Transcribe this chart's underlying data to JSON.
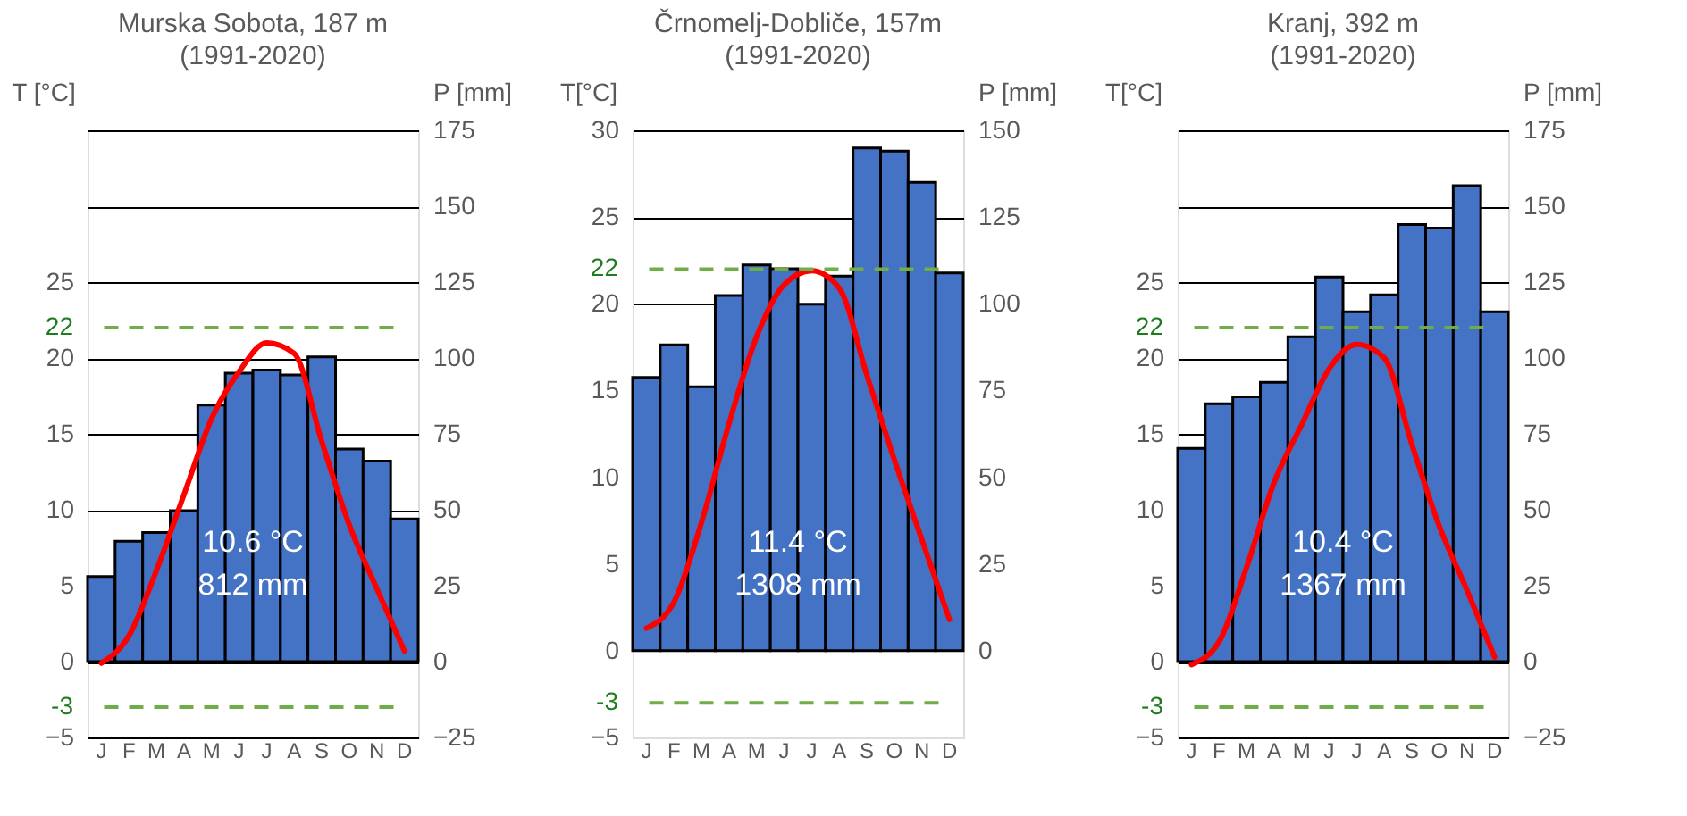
{
  "chart_data": [
    {
      "type": "bar",
      "title": "Murska Sobota, 187 m",
      "subtitle": "(1991-2020)",
      "ylabel": "T [°C]",
      "y2label": "P [mm]",
      "categories": [
        "J",
        "F",
        "M",
        "A",
        "M",
        "J",
        "J",
        "A",
        "S",
        "O",
        "N",
        "D"
      ],
      "series": [
        {
          "axis": "y2",
          "color": "#4472c4",
          "values": [
            28,
            39.6,
            42.5,
            49.7,
            84.5,
            95,
            96,
            94.4,
            100.4,
            70,
            66,
            47
          ]
        },
        {
          "type": "line",
          "color": "#ff0000",
          "values": [
            -0.1,
            1.7,
            6,
            11,
            16,
            19.1,
            21,
            20.3,
            14.5,
            9,
            4.8,
            0.7
          ]
        }
      ],
      "ylim": [
        -5,
        35
      ],
      "yticks": [
        -5,
        0,
        5,
        10,
        15,
        20,
        25
      ],
      "y2lim": [
        -25,
        175
      ],
      "y2ticks": [
        -25,
        0,
        25,
        50,
        75,
        100,
        125,
        150,
        175
      ],
      "grid": true,
      "ref_lines": [
        {
          "axis": "y",
          "value": 22,
          "label": "22",
          "color": "#70ad47",
          "line_style": "dashed"
        },
        {
          "axis": "y",
          "value": -3,
          "label": "-3",
          "color": "#70ad47",
          "line_style": "dashed"
        }
      ],
      "annotations": [
        "10.6 °C",
        "812 mm"
      ]
    },
    {
      "type": "bar",
      "title": "Črnomelj-Dobliče, 157m",
      "subtitle": "(1991-2020)",
      "ylabel": "T[°C]",
      "y2label": "P [mm]",
      "categories": [
        "J",
        "F",
        "M",
        "A",
        "M",
        "J",
        "J",
        "A",
        "S",
        "O",
        "N",
        "D"
      ],
      "series": [
        {
          "axis": "y2",
          "color": "#4472c4",
          "values": [
            78.8,
            88.2,
            76.1,
            102.4,
            111.2,
            110.1,
            99.9,
            108,
            144.9,
            144,
            135,
            108.9
          ]
        },
        {
          "type": "line",
          "color": "#ff0000",
          "values": [
            1.3,
            2.8,
            7.4,
            13.1,
            18.1,
            21.1,
            21.9,
            20.9,
            15.9,
            11,
            6.4,
            1.8
          ]
        }
      ],
      "ylim": [
        -5,
        30
      ],
      "yticks": [
        -5,
        0,
        5,
        10,
        15,
        20,
        25,
        30
      ],
      "y2lim": [
        -25,
        150
      ],
      "y2ticks": [
        0,
        25,
        50,
        75,
        100,
        125,
        150
      ],
      "grid": true,
      "ref_lines": [
        {
          "axis": "y",
          "value": 22,
          "label": "22",
          "color": "#70ad47",
          "line_style": "dashed"
        },
        {
          "axis": "y",
          "value": -3,
          "label": "-3",
          "color": "#70ad47",
          "line_style": "dashed"
        }
      ],
      "annotations": [
        "11.4 °C",
        "1308 mm"
      ]
    },
    {
      "type": "bar",
      "title": "Kranj, 392 m",
      "subtitle": "(1991-2020)",
      "ylabel": "T[°C]",
      "y2label": "P [mm]",
      "categories": [
        "J",
        "F",
        "M",
        "A",
        "M",
        "J",
        "J",
        "A",
        "S",
        "O",
        "N",
        "D"
      ],
      "series": [
        {
          "axis": "y2",
          "color": "#4472c4",
          "values": [
            70.2,
            84.9,
            87.2,
            92,
            107,
            126.7,
            115.2,
            120.8,
            144,
            142.8,
            156.8,
            115.2
          ]
        },
        {
          "type": "line",
          "color": "#ff0000",
          "values": [
            -0.2,
            1.3,
            6.2,
            11.8,
            15.6,
            19.3,
            20.9,
            20,
            14.3,
            8.9,
            4.7,
            0.3
          ]
        }
      ],
      "ylim": [
        -5,
        35
      ],
      "yticks": [
        -5,
        0,
        5,
        10,
        15,
        20,
        25
      ],
      "y2lim": [
        -25,
        175
      ],
      "y2ticks": [
        -25,
        0,
        25,
        50,
        75,
        100,
        125,
        150,
        175
      ],
      "grid": true,
      "ref_lines": [
        {
          "axis": "y",
          "value": 22,
          "label": "22",
          "color": "#70ad47",
          "line_style": "dashed"
        },
        {
          "axis": "y",
          "value": -3,
          "label": "-3",
          "color": "#70ad47",
          "line_style": "dashed"
        }
      ],
      "annotations": [
        "10.4 °C",
        "1367 mm"
      ]
    }
  ]
}
